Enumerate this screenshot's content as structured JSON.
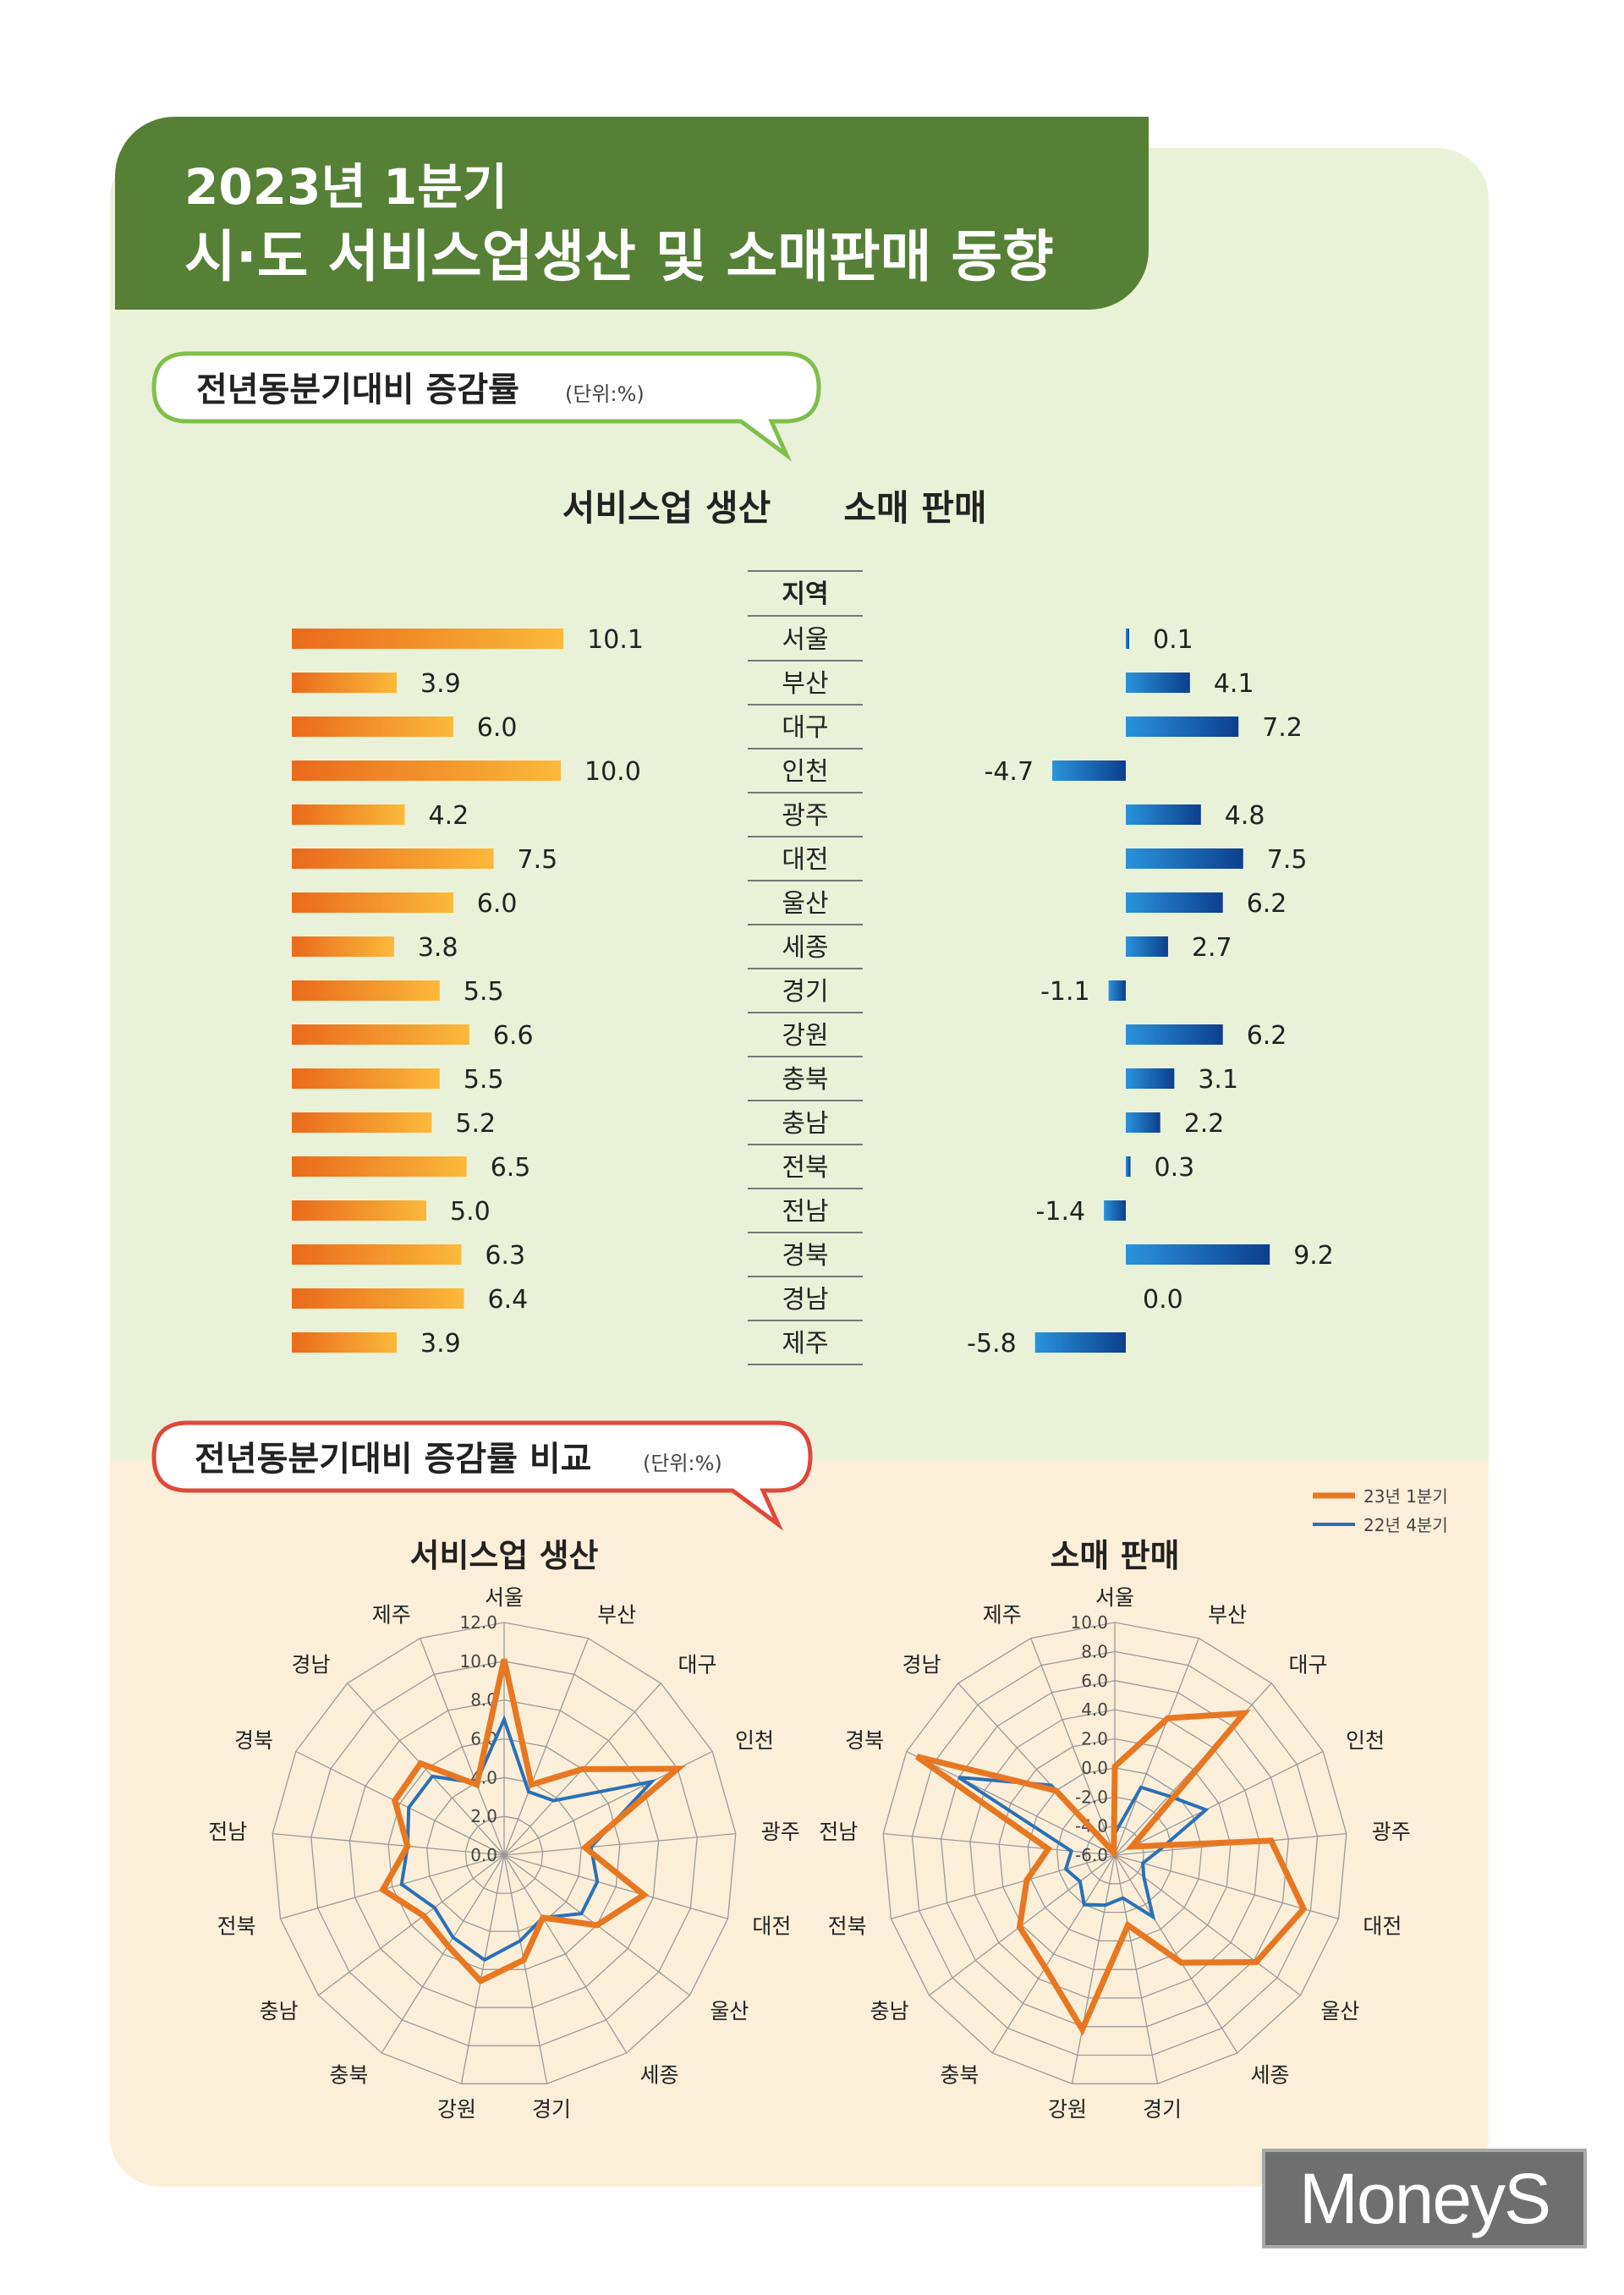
{
  "header": {
    "line1": "2023년 1분기",
    "line2": "시·도 서비스업생산 및 소매판매 동향"
  },
  "section1": {
    "title": "전년동분기대비 증감률",
    "unit": "(단위:%)",
    "left_label": "서비스업 생산",
    "right_label": "소매 판매",
    "region_header": "지역"
  },
  "section2": {
    "title": "전년동분기대비 증감률 비교",
    "unit": "(단위:%)",
    "chart1_title": "서비스업 생산",
    "chart2_title": "소매 판매",
    "legend_23": "23년 1분기",
    "legend_22": "22년 4분기"
  },
  "logo": {
    "text": "MoneyS"
  },
  "colors": {
    "orange": "#f0a020",
    "blue": "#1a73c2",
    "radar_orange": "#e87722",
    "radar_blue": "#2970b8",
    "green": "#568036"
  },
  "chart_data": [
    {
      "type": "bar",
      "title": "서비스업 생산",
      "categories": [
        "서울",
        "부산",
        "대구",
        "인천",
        "광주",
        "대전",
        "울산",
        "세종",
        "경기",
        "강원",
        "충북",
        "충남",
        "전북",
        "전남",
        "경북",
        "경남",
        "제주"
      ],
      "values": [
        10.1,
        3.9,
        6.0,
        10.0,
        4.2,
        7.5,
        6.0,
        3.8,
        5.5,
        6.6,
        5.5,
        5.2,
        6.5,
        5.0,
        6.3,
        6.4,
        3.9
      ],
      "labels": [
        "10.1",
        "3.9",
        "6.0",
        "10.0",
        "4.2",
        "7.5",
        "6.0",
        "3.8",
        "5.5",
        "6.6",
        "5.5",
        "5.2",
        "6.5",
        "5.0",
        "6.3",
        "6.4",
        "3.9"
      ]
    },
    {
      "type": "bar",
      "title": "소매 판매",
      "categories": [
        "서울",
        "부산",
        "대구",
        "인천",
        "광주",
        "대전",
        "울산",
        "세종",
        "경기",
        "강원",
        "충북",
        "충남",
        "전북",
        "전남",
        "경북",
        "경남",
        "제주"
      ],
      "values": [
        0.1,
        4.1,
        7.2,
        -4.7,
        4.8,
        7.5,
        6.2,
        2.7,
        -1.1,
        6.2,
        3.1,
        2.2,
        0.3,
        -1.4,
        9.2,
        0.0,
        -5.8
      ],
      "labels": [
        "0.1",
        "4.1",
        "7.2",
        "-4.7",
        "4.8",
        "7.5",
        "6.2",
        "2.7",
        "-1.1",
        "6.2",
        "3.1",
        "2.2",
        "0.3",
        "-1.4",
        "9.2",
        "0.0",
        "-5.8"
      ]
    },
    {
      "type": "radar",
      "title": "서비스업 생산",
      "categories": [
        "서울",
        "부산",
        "대구",
        "인천",
        "광주",
        "대전",
        "울산",
        "세종",
        "경기",
        "강원",
        "충북",
        "충남",
        "전북",
        "전남",
        "경북",
        "경남",
        "제주"
      ],
      "rlim": [
        0,
        12
      ],
      "ticks": [
        "0.0",
        "2.0",
        "4.0",
        "6.0",
        "8.0",
        "10.0",
        "12.0"
      ],
      "series": [
        {
          "name": "23년 1분기",
          "values": [
            10.1,
            3.9,
            6.0,
            10.0,
            4.2,
            7.5,
            6.0,
            3.8,
            5.5,
            6.6,
            5.5,
            5.2,
            6.5,
            5.0,
            6.3,
            6.4,
            3.9
          ]
        },
        {
          "name": "22년 4분기",
          "values": [
            7.0,
            3.5,
            3.8,
            8.5,
            4.5,
            5.0,
            5.0,
            3.8,
            4.5,
            5.5,
            5.0,
            4.5,
            5.5,
            5.0,
            5.5,
            5.5,
            4.0
          ]
        }
      ]
    },
    {
      "type": "radar",
      "title": "소매 판매",
      "categories": [
        "서울",
        "부산",
        "대구",
        "인천",
        "광주",
        "대전",
        "울산",
        "세종",
        "경기",
        "강원",
        "충북",
        "충남",
        "전북",
        "전남",
        "경북",
        "경남",
        "제주"
      ],
      "rlim": [
        -6,
        10
      ],
      "ticks": [
        "-6.0",
        "-4.0",
        "-2.0",
        "0.0",
        "2.0",
        "4.0",
        "6.0",
        "8.0",
        "10.0"
      ],
      "series": [
        {
          "name": "23년 1분기",
          "values": [
            0.1,
            4.1,
            7.2,
            -4.7,
            4.8,
            7.5,
            6.2,
            2.7,
            -1.1,
            6.2,
            3.1,
            2.2,
            0.3,
            -1.4,
            9.2,
            0.0,
            -5.8
          ]
        },
        {
          "name": "22년 4분기",
          "values": [
            -4.5,
            -1.0,
            -0.5,
            1.0,
            -3.0,
            -4.0,
            -3.5,
            -1.0,
            -3.0,
            -2.5,
            -2.0,
            -3.0,
            -2.5,
            -3.0,
            6.0,
            0.5,
            -6.0
          ]
        }
      ]
    }
  ]
}
